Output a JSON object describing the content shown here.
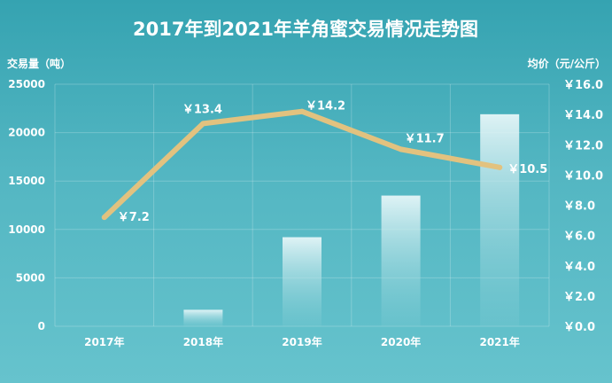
{
  "chart_data": {
    "type": "bar+line",
    "title": "2017年到2021年羊角蜜交易情况走势图",
    "categories": [
      "2017年",
      "2018年",
      "2019年",
      "2020年",
      "2021年"
    ],
    "left_axis": {
      "label": "交易量（吨）",
      "ticks": [
        "0",
        "5000",
        "10000",
        "15000",
        "20000",
        "25000"
      ],
      "ylim": [
        0,
        25000
      ]
    },
    "right_axis": {
      "label": "均价（元/公斤）",
      "ticks": [
        "￥0.0",
        "￥2.0",
        "￥4.0",
        "￥6.0",
        "￥8.0",
        "￥10.0",
        "￥12.0",
        "￥14.0",
        "￥16.0"
      ],
      "ylim": [
        0,
        16
      ]
    },
    "series": [
      {
        "type": "bar",
        "axis": "left",
        "values": [
          0,
          1700,
          9200,
          13500,
          21900
        ]
      },
      {
        "type": "line",
        "axis": "right",
        "values": [
          7.2,
          13.4,
          14.2,
          11.7,
          10.5
        ],
        "labels": [
          "￥7.2",
          "￥13.4",
          "￥14.2",
          "￥11.7",
          "￥10.5"
        ]
      }
    ],
    "grid": true,
    "colors": {
      "bar_top": "#e6f6f8",
      "bar_bottom": "#7dcad3",
      "line": "#e2c27f",
      "text": "#ffffff"
    }
  }
}
